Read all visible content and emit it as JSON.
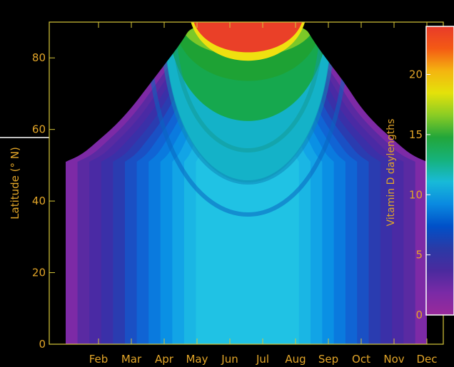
{
  "chart_data": {
    "type": "heatmap",
    "title": "",
    "xlabel": "",
    "ylabel": "Latitude (° N)",
    "colorbar_label": "Vitamin D daylengths",
    "x_categories": [
      "Feb",
      "Mar",
      "Apr",
      "May",
      "Jun",
      "Jul",
      "Aug",
      "Sep",
      "Oct",
      "Nov",
      "Dec"
    ],
    "x_range_months": [
      0.5,
      12.5
    ],
    "y_ticks": [
      0,
      20,
      40,
      60,
      80
    ],
    "ylim": [
      0,
      90
    ],
    "colorbar_ticks": [
      0,
      5,
      10,
      15,
      20
    ],
    "colorbar_range": [
      0,
      24
    ],
    "colors": {
      "background": "#000000",
      "axis": "#d7c83a",
      "tick_text": "#e2a528",
      "colorbar_border": "#ffffff",
      "colorbar_stops": [
        "#9a2a9a",
        "#7a2aa6",
        "#4a2a9e",
        "#2a3aa6",
        "#0050c8",
        "#0a8ae0",
        "#18bad8",
        "#16b27a",
        "#22a63a",
        "#8acc24",
        "#e4e20a",
        "#f4b410",
        "#f45a14",
        "#e83a2a"
      ]
    },
    "polar_day_boundary": [
      {
        "month": 1.0,
        "lat": 51
      },
      {
        "month": 1.5,
        "lat": 53
      },
      {
        "month": 2.0,
        "lat": 57
      },
      {
        "month": 2.5,
        "lat": 61
      },
      {
        "month": 3.0,
        "lat": 66
      },
      {
        "month": 3.5,
        "lat": 72
      },
      {
        "month": 4.0,
        "lat": 78
      },
      {
        "month": 4.5,
        "lat": 84
      },
      {
        "month": 4.9,
        "lat": 90
      },
      {
        "month": 8.2,
        "lat": 90
      },
      {
        "month": 8.6,
        "lat": 84
      },
      {
        "month": 9.0,
        "lat": 79
      },
      {
        "month": 9.5,
        "lat": 73
      },
      {
        "month": 10.0,
        "lat": 66
      },
      {
        "month": 10.5,
        "lat": 61
      },
      {
        "month": 11.0,
        "lat": 57
      },
      {
        "month": 11.5,
        "lat": 53
      },
      {
        "month": 12.0,
        "lat": 51
      }
    ],
    "midsummer_values_by_latitude": [
      {
        "lat": 0,
        "value": 11
      },
      {
        "lat": 20,
        "value": 12
      },
      {
        "lat": 40,
        "value": 12
      },
      {
        "lat": 60,
        "value": 15
      },
      {
        "lat": 80,
        "value": 18
      },
      {
        "lat": 88,
        "value": 24
      }
    ]
  }
}
